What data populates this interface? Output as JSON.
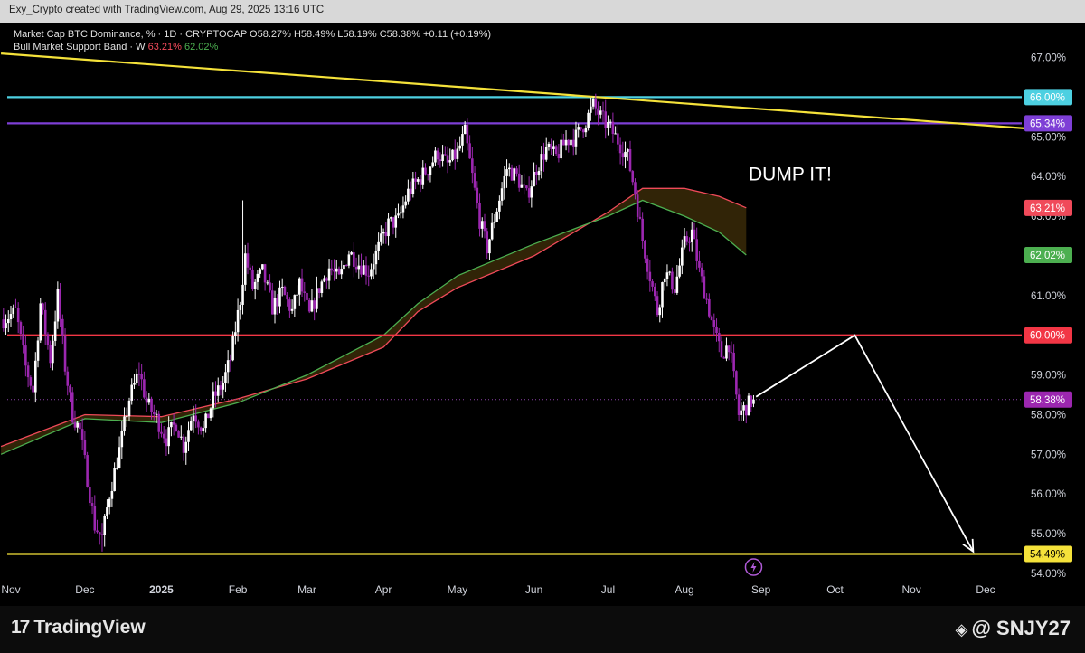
{
  "header": {
    "attribution": "Exy_Crypto created with TradingView.com, Aug 29, 2025 13:16 UTC"
  },
  "legend": {
    "line1": "Market Cap BTC Dominance, % · 1D · CRYPTOCAP  O58.27%  H58.49%  L58.19%  C58.38%  +0.11 (+0.19%)",
    "band_name": "Bull Market Support Band · W",
    "band_upper": "63.21%",
    "band_lower": "62.02%"
  },
  "footer": {
    "brand": "TradingView",
    "watermark": "@ SNJY27"
  },
  "colors": {
    "background": "#000000",
    "candle_up": "#ffffff",
    "candle_down": "#9c27b0",
    "band_upper": "#f04a5a",
    "band_lower": "#4caf50",
    "band_fill": "#3a2a08",
    "level_66": "#4dd0e1",
    "level_65": "#7e3fd6",
    "level_60": "#f23645",
    "level_54": "#f5e23a",
    "trendline": "#f5e23a",
    "projection": "#ffffff"
  },
  "chart_data": {
    "type": "candlestick",
    "title": "Market Cap BTC Dominance, % · 1D · CRYPTOCAP",
    "ylabel": "",
    "ylim": [
      53.9,
      67.6
    ],
    "y_ticks": [
      "54.00%",
      "55.00%",
      "56.00%",
      "57.00%",
      "58.00%",
      "59.00%",
      "60.00%",
      "61.00%",
      "62.00%",
      "63.00%",
      "64.00%",
      "65.00%",
      "66.00%",
      "67.00%"
    ],
    "x_ticks": [
      "Nov",
      "Dec",
      "2025",
      "Feb",
      "Mar",
      "Apr",
      "May",
      "Jun",
      "Jul",
      "Aug",
      "Sep",
      "Oct",
      "Nov",
      "Dec"
    ],
    "x_tick_dates": [
      "2024-11-01",
      "2024-12-01",
      "2025-01-01",
      "2025-02-01",
      "2025-03-01",
      "2025-04-01",
      "2025-05-01",
      "2025-06-01",
      "2025-07-01",
      "2025-08-01",
      "2025-09-01",
      "2025-10-01",
      "2025-11-01",
      "2025-12-01"
    ],
    "last": {
      "open": 58.27,
      "high": 58.49,
      "low": 58.19,
      "close": 58.38,
      "change": 0.11,
      "change_pct": 0.19
    },
    "price_path": [
      [
        "2024-10-29",
        60.4
      ],
      [
        "2024-11-03",
        60.6
      ],
      [
        "2024-11-07",
        59.2
      ],
      [
        "2024-11-10",
        58.6
      ],
      [
        "2024-11-13",
        60.8
      ],
      [
        "2024-11-17",
        59.4
      ],
      [
        "2024-11-20",
        61.0
      ],
      [
        "2024-11-23",
        59.2
      ],
      [
        "2024-11-26",
        58.0
      ],
      [
        "2024-11-29",
        57.6
      ],
      [
        "2024-12-02",
        56.4
      ],
      [
        "2024-12-05",
        55.2
      ],
      [
        "2024-12-08",
        54.9
      ],
      [
        "2024-12-11",
        56.0
      ],
      [
        "2024-12-15",
        57.1
      ],
      [
        "2024-12-19",
        58.4
      ],
      [
        "2024-12-23",
        59.1
      ],
      [
        "2024-12-26",
        58.3
      ],
      [
        "2024-12-30",
        57.9
      ],
      [
        "2025-01-03",
        57.4
      ],
      [
        "2025-01-07",
        57.8
      ],
      [
        "2025-01-10",
        57.2
      ],
      [
        "2025-01-14",
        58.1
      ],
      [
        "2025-01-18",
        57.6
      ],
      [
        "2025-01-22",
        58.4
      ],
      [
        "2025-01-26",
        58.8
      ],
      [
        "2025-01-29",
        59.4
      ],
      [
        "2025-02-02",
        60.9
      ],
      [
        "2025-02-04",
        62.0
      ],
      [
        "2025-02-07",
        61.2
      ],
      [
        "2025-02-11",
        61.6
      ],
      [
        "2025-02-15",
        60.7
      ],
      [
        "2025-02-19",
        61.1
      ],
      [
        "2025-02-23",
        60.6
      ],
      [
        "2025-02-26",
        61.3
      ],
      [
        "2025-03-02",
        60.5
      ],
      [
        "2025-03-06",
        61.2
      ],
      [
        "2025-03-10",
        61.7
      ],
      [
        "2025-03-14",
        61.4
      ],
      [
        "2025-03-18",
        62.1
      ],
      [
        "2025-03-22",
        61.8
      ],
      [
        "2025-03-26",
        61.6
      ],
      [
        "2025-03-30",
        62.2
      ],
      [
        "2025-04-03",
        62.8
      ],
      [
        "2025-04-07",
        62.9
      ],
      [
        "2025-04-11",
        63.6
      ],
      [
        "2025-04-15",
        63.9
      ],
      [
        "2025-04-19",
        64.2
      ],
      [
        "2025-04-23",
        64.6
      ],
      [
        "2025-04-27",
        64.3
      ],
      [
        "2025-05-01",
        64.6
      ],
      [
        "2025-05-04",
        65.1
      ],
      [
        "2025-05-07",
        64.0
      ],
      [
        "2025-05-10",
        62.9
      ],
      [
        "2025-05-13",
        62.2
      ],
      [
        "2025-05-17",
        63.2
      ],
      [
        "2025-05-21",
        64.2
      ],
      [
        "2025-05-25",
        64.0
      ],
      [
        "2025-05-29",
        63.5
      ],
      [
        "2025-06-02",
        64.2
      ],
      [
        "2025-06-06",
        64.7
      ],
      [
        "2025-06-10",
        64.5
      ],
      [
        "2025-06-14",
        64.9
      ],
      [
        "2025-06-18",
        65.0
      ],
      [
        "2025-06-22",
        65.4
      ],
      [
        "2025-06-25",
        65.8
      ],
      [
        "2025-06-28",
        65.5
      ],
      [
        "2025-07-02",
        65.2
      ],
      [
        "2025-07-06",
        64.8
      ],
      [
        "2025-07-09",
        64.5
      ],
      [
        "2025-07-12",
        63.6
      ],
      [
        "2025-07-15",
        62.4
      ],
      [
        "2025-07-18",
        61.5
      ],
      [
        "2025-07-21",
        60.6
      ],
      [
        "2025-07-24",
        61.6
      ],
      [
        "2025-07-28",
        61.2
      ],
      [
        "2025-08-01",
        62.3
      ],
      [
        "2025-08-04",
        62.6
      ],
      [
        "2025-08-07",
        61.6
      ],
      [
        "2025-08-10",
        60.9
      ],
      [
        "2025-08-13",
        60.1
      ],
      [
        "2025-08-16",
        59.5
      ],
      [
        "2025-08-19",
        59.8
      ],
      [
        "2025-08-21",
        58.9
      ],
      [
        "2025-08-23",
        58.0
      ],
      [
        "2025-08-26",
        58.2
      ],
      [
        "2025-08-29",
        58.38
      ]
    ],
    "band_upper_path": [
      [
        "2024-10-28",
        57.2
      ],
      [
        "2024-12-01",
        58.0
      ],
      [
        "2025-01-01",
        57.95
      ],
      [
        "2025-02-01",
        58.4
      ],
      [
        "2025-03-01",
        58.9
      ],
      [
        "2025-04-01",
        59.7
      ],
      [
        "2025-04-15",
        60.6
      ],
      [
        "2025-05-01",
        61.2
      ],
      [
        "2025-06-01",
        62.0
      ],
      [
        "2025-07-01",
        63.1
      ],
      [
        "2025-07-15",
        63.7
      ],
      [
        "2025-08-01",
        63.7
      ],
      [
        "2025-08-15",
        63.5
      ],
      [
        "2025-08-26",
        63.21
      ]
    ],
    "band_lower_path": [
      [
        "2024-10-28",
        57.0
      ],
      [
        "2024-12-01",
        57.9
      ],
      [
        "2025-01-01",
        57.8
      ],
      [
        "2025-02-01",
        58.3
      ],
      [
        "2025-03-01",
        59.0
      ],
      [
        "2025-04-01",
        60.0
      ],
      [
        "2025-04-15",
        60.8
      ],
      [
        "2025-05-01",
        61.5
      ],
      [
        "2025-06-01",
        62.3
      ],
      [
        "2025-07-01",
        63.0
      ],
      [
        "2025-07-15",
        63.4
      ],
      [
        "2025-08-01",
        63.0
      ],
      [
        "2025-08-15",
        62.6
      ],
      [
        "2025-08-26",
        62.02
      ]
    ],
    "horizontal_levels": [
      {
        "value": 66.0,
        "label": "66.00%",
        "color": "#4dd0e1"
      },
      {
        "value": 65.34,
        "label": "65.34%",
        "color": "#7e3fd6"
      },
      {
        "value": 60.0,
        "label": "60.00%",
        "color": "#f23645"
      },
      {
        "value": 54.49,
        "label": "54.49%",
        "color": "#f5e23a"
      }
    ],
    "price_badges": [
      {
        "value": 63.21,
        "label": "63.21%",
        "color": "#f04a5a",
        "text": "#ffffff"
      },
      {
        "value": 62.02,
        "label": "62.02%",
        "color": "#4caf50",
        "text": "#ffffff"
      },
      {
        "value": 58.38,
        "label": "58.38%",
        "color": "#9c27b0",
        "text": "#ffffff"
      }
    ],
    "trendline": [
      [
        "2024-10-28",
        67.1
      ],
      [
        "2025-12-20",
        65.2
      ]
    ],
    "projection": [
      [
        "2025-08-30",
        58.45
      ],
      [
        "2025-10-09",
        60.0
      ],
      [
        "2025-11-26",
        54.55
      ]
    ],
    "annotation": {
      "text": "DUMP IT!",
      "date": "2025-08-27",
      "value": 63.9
    }
  }
}
